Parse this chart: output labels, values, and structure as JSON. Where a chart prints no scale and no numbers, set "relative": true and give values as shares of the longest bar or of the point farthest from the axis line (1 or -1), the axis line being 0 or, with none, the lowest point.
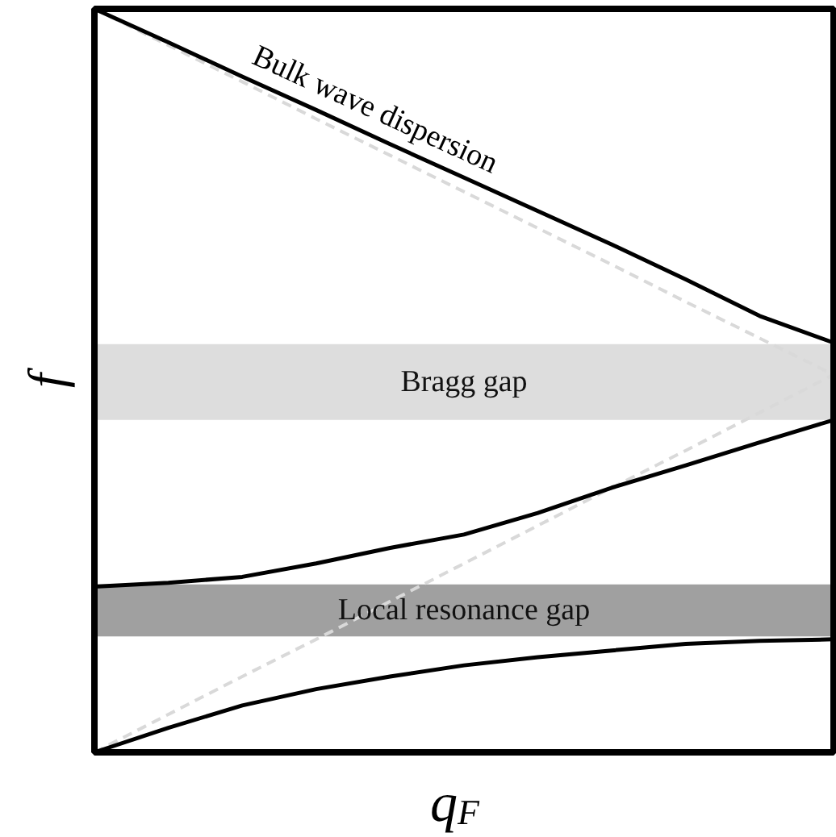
{
  "chart_data": {
    "type": "line",
    "relative": true,
    "xlabel": "q$_{F}$",
    "ylabel": "f",
    "grid": false,
    "categories": [
      null,
      null,
      null,
      null,
      null,
      null,
      null,
      null,
      null,
      null,
      null
    ],
    "series": [
      {
        "color": "#d9d9d9",
        "line_style": "dashed",
        "values": [
          1.0,
          0.951,
          0.902,
          0.852,
          0.803,
          0.754,
          0.705,
          0.656,
          0.606,
          0.557,
          0.508
        ]
      },
      {
        "color": "#d9d9d9",
        "line_style": "dashed",
        "values": [
          0,
          0.051,
          0.102,
          0.152,
          0.203,
          0.254,
          0.305,
          0.356,
          0.406,
          0.457,
          0.508
        ]
      },
      {
        "color": "#000000",
        "values": [
          1.0,
          0.955,
          0.909,
          0.864,
          0.818,
          0.773,
          0.728,
          0.683,
          0.636,
          0.587,
          0.551
        ]
      },
      {
        "color": "#000000",
        "values": [
          0.223,
          0.228,
          0.236,
          0.254,
          0.275,
          0.293,
          0.322,
          0.356,
          0.386,
          0.417,
          0.447
        ]
      },
      {
        "color": "#000000",
        "values": [
          0,
          0.033,
          0.063,
          0.085,
          0.102,
          0.117,
          0.128,
          0.137,
          0.146,
          0.15,
          0.152
        ]
      }
    ],
    "bands": [
      {
        "axis": "y",
        "from": 0.447,
        "to": 0.549,
        "label": "Bragg gap",
        "color": "#dddddd"
      },
      {
        "axis": "y",
        "from": 0.156,
        "to": 0.226,
        "label": "Local resonance gap",
        "color": "#a0a0a0"
      }
    ],
    "annotations": [
      "Bulk wave dispersion"
    ]
  }
}
